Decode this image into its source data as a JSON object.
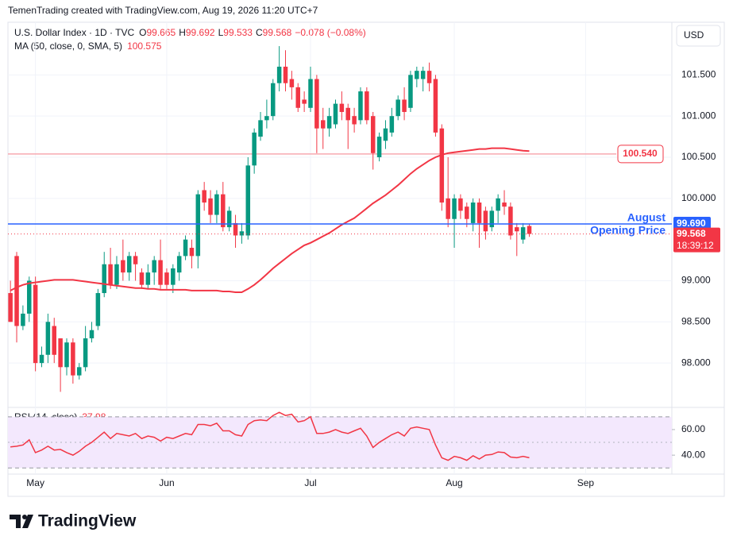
{
  "header": {
    "attribution": "TemenTrading created with TradingView.com, Aug 19, 2026 11:20 UTC+7",
    "currency": "USD",
    "brand": "TradingView"
  },
  "chart_data": [
    {
      "type": "candlestick",
      "symbol": "U.S. Dollar Index · 1D · TVC",
      "legend_labels": {
        "open": "O",
        "high": "H",
        "low": "L",
        "close": "C"
      },
      "change": "−0.078 (−0.08%)",
      "countdown": "18:39:12",
      "up_color": "#089981",
      "down_color": "#f23645",
      "categories": [
        null,
        null,
        null,
        null,
        null,
        null,
        null,
        null,
        null,
        null,
        null,
        null,
        null,
        null,
        null,
        null,
        null,
        null,
        null,
        null,
        null,
        null,
        null,
        null,
        null,
        null,
        null,
        null,
        null,
        null,
        null,
        null,
        null,
        null,
        null,
        null,
        null,
        null,
        null,
        null,
        null,
        null,
        null,
        null,
        null,
        null,
        null,
        null,
        null,
        null,
        null,
        null,
        null,
        null,
        null,
        null,
        null,
        null,
        null,
        null,
        null,
        null,
        null,
        null,
        null,
        null,
        null,
        null,
        null,
        null,
        null,
        null,
        null,
        null,
        null,
        null,
        null,
        null,
        null,
        null,
        null,
        null,
        null,
        null
      ],
      "open": [
        98.85,
        99.3,
        98.45,
        98.6,
        98.95,
        98.0,
        98.1,
        98.45,
        98.3,
        97.95,
        98.25,
        97.85,
        97.95,
        98.3,
        98.45,
        98.85,
        99.2,
        98.95,
        99.25,
        99.1,
        99.3,
        99.1,
        98.95,
        99.1,
        99.25,
        99.1,
        98.95,
        99.1,
        99.3,
        99.4,
        99.3,
        100.1,
        100.0,
        99.8,
        100.05,
        99.65,
        99.7,
        99.55,
        99.55,
        100.4,
        100.75,
        100.95,
        101.0,
        101.4,
        101.6,
        101.45,
        101.35,
        101.2,
        101.1,
        101.45,
        100.95,
        100.85,
        100.9,
        101.15,
        101.1,
        101.0,
        100.95,
        101.3,
        101.0,
        100.5,
        100.7,
        100.8,
        101.0,
        101.2,
        101.1,
        101.45,
        101.45,
        101.55,
        101.45,
        100.85,
        100.0,
        99.75,
        100.0,
        99.9,
        99.7,
        99.95,
        99.85,
        99.65,
        99.85,
        99.95,
        99.9,
        99.65,
        99.5,
        99.665
      ],
      "high": [
        99.0,
        99.35,
        98.7,
        99.05,
        99.05,
        98.2,
        98.6,
        98.55,
        98.3,
        98.3,
        98.3,
        98.0,
        98.45,
        98.5,
        98.9,
        99.35,
        99.4,
        99.3,
        99.5,
        99.35,
        99.35,
        99.15,
        99.2,
        99.3,
        99.5,
        99.15,
        99.2,
        99.35,
        99.55,
        99.5,
        100.1,
        100.2,
        100.1,
        100.1,
        100.2,
        99.9,
        99.8,
        99.7,
        100.5,
        100.85,
        101.05,
        101.2,
        101.45,
        101.85,
        101.8,
        101.55,
        101.4,
        101.3,
        101.6,
        101.5,
        101.1,
        101.1,
        101.2,
        101.3,
        101.15,
        101.1,
        101.35,
        101.35,
        101.05,
        100.8,
        100.95,
        101.1,
        101.25,
        101.35,
        101.55,
        101.6,
        101.6,
        101.65,
        101.5,
        100.9,
        100.5,
        100.05,
        100.05,
        99.95,
        100.0,
        100.0,
        99.9,
        99.9,
        100.05,
        100.1,
        99.95,
        99.7,
        99.7,
        99.692
      ],
      "low": [
        98.5,
        98.25,
        98.4,
        98.5,
        97.9,
        97.95,
        98.0,
        98.0,
        97.65,
        97.85,
        97.75,
        97.8,
        97.9,
        98.25,
        98.4,
        98.8,
        98.9,
        98.9,
        99.0,
        99.0,
        99.0,
        98.9,
        98.9,
        98.95,
        98.9,
        98.9,
        98.85,
        99.0,
        99.25,
        99.15,
        99.15,
        99.85,
        99.7,
        99.7,
        99.6,
        99.6,
        99.4,
        99.45,
        99.5,
        100.3,
        100.7,
        100.85,
        100.95,
        101.3,
        101.3,
        101.2,
        101.05,
        101.05,
        101.05,
        100.55,
        100.6,
        100.75,
        100.85,
        100.95,
        100.6,
        100.8,
        100.9,
        100.9,
        100.35,
        100.45,
        100.6,
        100.75,
        100.95,
        100.95,
        101.05,
        101.35,
        101.3,
        101.3,
        100.75,
        99.85,
        99.65,
        99.4,
        99.75,
        99.65,
        99.6,
        99.4,
        99.5,
        99.6,
        99.7,
        99.8,
        99.5,
        99.3,
        99.45,
        99.533
      ],
      "close": [
        98.5,
        98.45,
        98.6,
        99.0,
        98.0,
        98.1,
        98.5,
        98.1,
        97.95,
        98.25,
        97.85,
        97.95,
        98.3,
        98.4,
        98.85,
        99.2,
        98.95,
        99.2,
        99.1,
        99.3,
        99.2,
        98.95,
        99.1,
        99.25,
        98.95,
        98.95,
        99.15,
        99.3,
        99.5,
        99.3,
        100.05,
        99.95,
        99.8,
        100.05,
        99.65,
        99.85,
        99.55,
        99.6,
        100.4,
        100.8,
        100.95,
        101.0,
        101.4,
        101.6,
        101.4,
        101.35,
        101.1,
        101.15,
        101.45,
        100.85,
        100.85,
        101.0,
        101.15,
        101.05,
        100.95,
        100.9,
        101.3,
        100.95,
        100.55,
        100.75,
        100.85,
        101.0,
        101.2,
        101.05,
        101.5,
        101.55,
        101.55,
        101.4,
        100.8,
        99.95,
        99.75,
        100.0,
        99.85,
        99.75,
        99.95,
        99.7,
        99.6,
        99.85,
        100.0,
        99.9,
        99.55,
        99.6,
        99.65,
        99.568
      ],
      "overlays": [
        {
          "name": "MA (50, close, 0, SMA, 5)",
          "color": "#f23645",
          "values": [
            98.88,
            98.92,
            98.95,
            98.97,
            98.98,
            98.99,
            99.0,
            99.01,
            99.01,
            99.01,
            99.01,
            99.0,
            98.99,
            98.98,
            98.97,
            98.96,
            98.95,
            98.94,
            98.93,
            98.92,
            98.91,
            98.91,
            98.9,
            98.9,
            98.89,
            98.89,
            98.89,
            98.89,
            98.89,
            98.88,
            98.88,
            98.88,
            98.88,
            98.88,
            98.87,
            98.87,
            98.86,
            98.86,
            98.9,
            98.95,
            99.01,
            99.08,
            99.15,
            99.21,
            99.27,
            99.33,
            99.38,
            99.43,
            99.46,
            99.5,
            99.54,
            99.58,
            99.63,
            99.68,
            99.72,
            99.76,
            99.82,
            99.88,
            99.94,
            99.99,
            100.04,
            100.1,
            100.16,
            100.23,
            100.3,
            100.36,
            100.41,
            100.46,
            100.5,
            100.53,
            100.55,
            100.56,
            100.57,
            100.58,
            100.59,
            100.6,
            100.6,
            100.61,
            100.61,
            100.61,
            100.6,
            100.59,
            100.58,
            100.575
          ]
        }
      ],
      "hlines": [
        {
          "value": 99.69,
          "label": "99.690",
          "color": "#2962ff",
          "tag_position": "axis",
          "annotation": [
            "August",
            "Opening Price"
          ]
        },
        {
          "value": 100.54,
          "label": "100.540",
          "color": "#f7a9b1",
          "tag_position": "inside"
        }
      ],
      "xlim": [
        -0.4,
        105.8
      ],
      "xticks": [
        {
          "value": 4,
          "label": "May"
        },
        {
          "value": 25,
          "label": "Jun"
        },
        {
          "value": 48,
          "label": "Jul"
        },
        {
          "value": 71,
          "label": "Aug"
        },
        {
          "value": 92,
          "label": "Sep"
        }
      ],
      "ylim": [
        97.49,
        102.14
      ],
      "yticks": [
        {
          "value": 98,
          "label": "98.000"
        },
        {
          "value": 98.5,
          "label": "98.500"
        },
        {
          "value": 99,
          "label": "99.000"
        },
        {
          "value": 100,
          "label": "100.000"
        },
        {
          "value": 100.5,
          "label": "100.500"
        },
        {
          "value": 101,
          "label": "101.000"
        },
        {
          "value": 101.5,
          "label": "101.500"
        }
      ],
      "grid": true
    },
    {
      "type": "line",
      "series": [
        {
          "name": "RSI (14, close)",
          "color": "#f23645",
          "values": [
            46.5,
            47,
            48,
            52,
            42,
            44,
            47,
            44,
            44.5,
            42,
            40,
            43,
            47,
            50,
            54,
            58,
            53,
            57,
            56,
            55,
            57,
            53,
            55,
            54,
            51,
            54,
            53,
            55,
            57,
            56,
            64,
            64,
            63,
            65,
            59,
            59,
            56,
            55,
            64,
            67,
            67.5,
            67,
            71,
            73.5,
            71,
            72,
            66,
            67,
            70,
            57,
            57,
            58,
            60,
            58,
            57,
            59,
            61,
            55,
            46,
            50,
            53,
            56,
            58,
            55,
            61,
            62,
            61,
            60,
            48,
            38,
            36,
            39,
            38,
            36,
            39.5,
            37,
            40,
            40.5,
            42.5,
            42,
            38.5,
            38,
            39,
            37.98
          ]
        }
      ],
      "band": [
        30,
        70
      ],
      "midline": 50,
      "band_color": "#f3e8fd",
      "xlim": [
        -0.4,
        105.8
      ],
      "ylim": [
        25.8,
        76.1
      ],
      "yticks": [
        {
          "value": 40,
          "label": "40.00"
        },
        {
          "value": 60,
          "label": "60.00"
        }
      ],
      "grid": true
    }
  ]
}
